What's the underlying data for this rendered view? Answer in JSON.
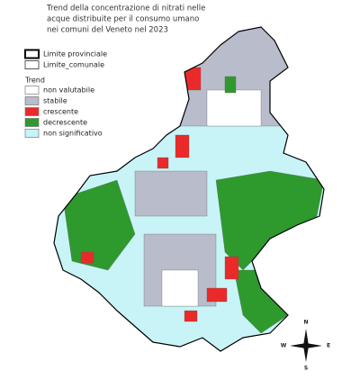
{
  "title": [
    "Trend della concentrazione di nitrati nelle",
    "acque distribuite per il consumo umano",
    "nei comuni del Veneto nel 2023"
  ],
  "boundaries": [
    {
      "label": "Limite provinciale",
      "stroke": "#000000",
      "width": 2
    },
    {
      "label": "Limite_comunale",
      "stroke": "#555555",
      "width": 1
    }
  ],
  "legend": {
    "title": "Trend",
    "items": [
      {
        "label": "non valutabile",
        "color": "#ffffff"
      },
      {
        "label": "stabile",
        "color": "#b8bccb"
      },
      {
        "label": "crescente",
        "color": "#ea2a2a"
      },
      {
        "label": "decrescente",
        "color": "#2e9a2e"
      },
      {
        "label": "non significativo",
        "color": "#c8f4f7"
      }
    ]
  },
  "compass": {
    "n": "N",
    "s": "S",
    "w": "W",
    "e": "E"
  }
}
